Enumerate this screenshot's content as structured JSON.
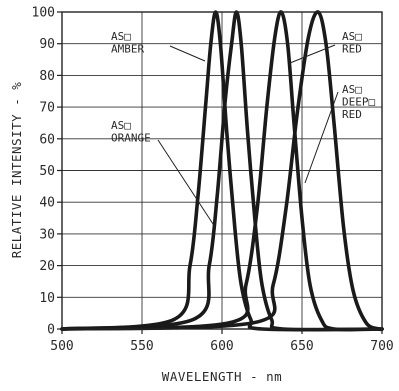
{
  "chart_data": {
    "type": "line",
    "xlabel": "WAVELENGTH - nm",
    "ylabel": "RELATIVE INTENSITY - %",
    "xlim": [
      500,
      700
    ],
    "ylim": [
      0,
      100
    ],
    "x_ticks": [
      "500",
      "550",
      "600",
      "650",
      "700"
    ],
    "y_ticks": [
      "0",
      "10",
      "20",
      "30",
      "40",
      "50",
      "60",
      "70",
      "80",
      "90",
      "100"
    ],
    "grid": true,
    "series": [
      {
        "name": "AS□ ORANGE",
        "peak_nm": 596,
        "points": [
          [
            570,
            3
          ],
          [
            580,
            20
          ],
          [
            585,
            42
          ],
          [
            590,
            72
          ],
          [
            593,
            90
          ],
          [
            596,
            100
          ],
          [
            599,
            90
          ],
          [
            603,
            62
          ],
          [
            608,
            32
          ],
          [
            612,
            14
          ],
          [
            618,
            3
          ],
          [
            625,
            0
          ]
        ]
      },
      {
        "name": "AS□ AMBER",
        "peak_nm": 609,
        "points": [
          [
            582,
            3
          ],
          [
            592,
            20
          ],
          [
            597,
            42
          ],
          [
            602,
            72
          ],
          [
            606,
            90
          ],
          [
            609,
            100
          ],
          [
            612,
            90
          ],
          [
            616,
            62
          ],
          [
            621,
            32
          ],
          [
            625,
            14
          ],
          [
            631,
            3
          ],
          [
            638,
            0
          ]
        ]
      },
      {
        "name": "AS□ RED",
        "peak_nm": 637,
        "points": [
          [
            605,
            2
          ],
          [
            615,
            14
          ],
          [
            622,
            38
          ],
          [
            628,
            70
          ],
          [
            633,
            92
          ],
          [
            637,
            100
          ],
          [
            641,
            90
          ],
          [
            645,
            65
          ],
          [
            650,
            35
          ],
          [
            655,
            14
          ],
          [
            662,
            3
          ],
          [
            670,
            0
          ]
        ]
      },
      {
        "name": "AS□ DEEP□ RED",
        "peak_nm": 660,
        "points": [
          [
            620,
            2
          ],
          [
            632,
            14
          ],
          [
            640,
            38
          ],
          [
            647,
            68
          ],
          [
            654,
            92
          ],
          [
            660,
            100
          ],
          [
            665,
            90
          ],
          [
            670,
            65
          ],
          [
            676,
            32
          ],
          [
            682,
            12
          ],
          [
            690,
            2
          ],
          [
            698,
            0
          ]
        ]
      }
    ],
    "annotations": [
      {
        "lines": [
          "AS□",
          "AMBER"
        ]
      },
      {
        "lines": [
          "AS□",
          "ORANGE"
        ]
      },
      {
        "lines": [
          "AS□",
          "RED"
        ]
      },
      {
        "lines": [
          "AS□",
          "DEEP□",
          "RED"
        ]
      }
    ]
  }
}
